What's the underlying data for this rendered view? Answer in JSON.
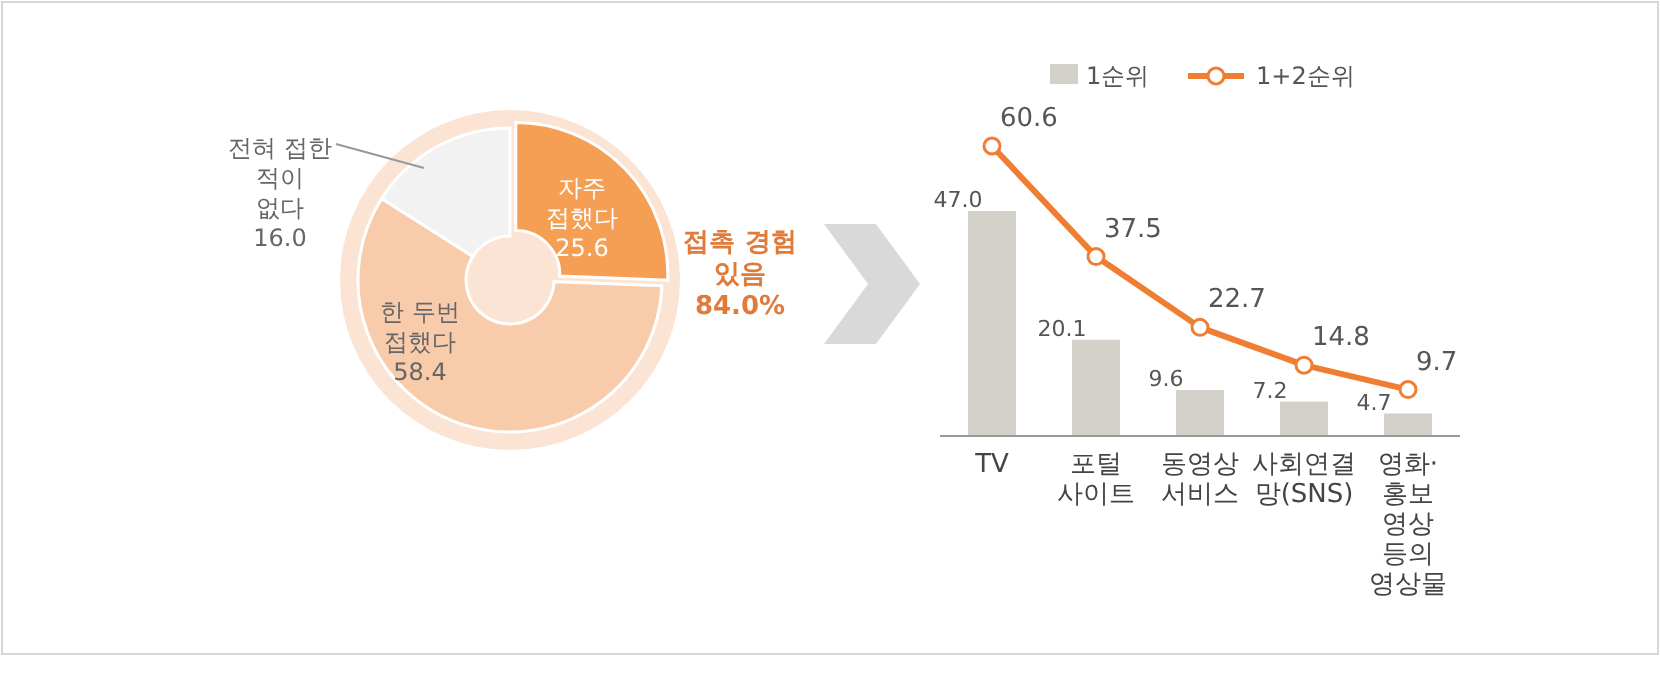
{
  "chart_data": [
    {
      "type": "donut",
      "categories": [
        "자주\n접했다",
        "한 두번\n접했다",
        "전혀 접한\n적이\n없다"
      ],
      "values": [
        25.6,
        58.4,
        16.0
      ],
      "colors": [
        "#f59f55",
        "#f8cbab",
        "#f2f2f2"
      ],
      "value_labels": [
        "25.6",
        "58.4",
        "16.0"
      ],
      "annotations": [
        "접촉 경험\n있음\n84.0%"
      ]
    },
    {
      "type": "bar",
      "categories": [
        "TV",
        "포털\n사이트",
        "동영상\n서비스",
        "사회연결\n망(SNS)",
        "영화·\n홍보\n영상\n등의\n영상물"
      ],
      "legend": "top",
      "series": [
        {
          "name": "1순위",
          "type": "bar",
          "color": "#d3cfc9",
          "values": [
            47.0,
            20.1,
            9.6,
            7.2,
            4.7
          ],
          "value_labels": [
            "47.0",
            "20.1",
            "9.6",
            "7.2",
            "4.7"
          ]
        },
        {
          "name": "1+2순위",
          "type": "line",
          "color": "#ef7d32",
          "marker": "circle",
          "values": [
            60.6,
            37.5,
            22.7,
            14.8,
            9.7
          ],
          "value_labels": [
            "60.6",
            "37.5",
            "22.7",
            "14.8",
            "9.7"
          ]
        }
      ]
    }
  ]
}
